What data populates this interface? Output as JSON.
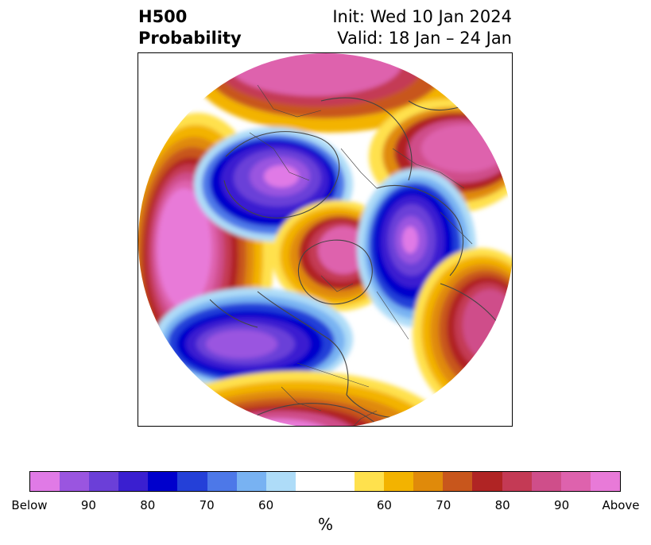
{
  "title": {
    "left_line1": "H500",
    "left_line2": "Probability",
    "right_line1": "Init: Wed 10 Jan 2024",
    "right_line2": "Valid: 18 Jan – 24 Jan"
  },
  "colorbar": {
    "colors": [
      "#e07ae6",
      "#9a55e0",
      "#6b3fd8",
      "#3a1fd0",
      "#0000cc",
      "#2440d8",
      "#4d78e8",
      "#78b2f2",
      "#aedcf8",
      "#ffffff",
      "#ffffff",
      "#ffe14d",
      "#f3b300",
      "#e08a0a",
      "#c8561c",
      "#b02424",
      "#c43a55",
      "#cf4e8a",
      "#de62ad",
      "#e87ad8"
    ],
    "tick_labels": [
      "Below",
      "90",
      "80",
      "70",
      "60",
      "60",
      "70",
      "80",
      "90",
      "Above"
    ],
    "unit": "%"
  },
  "map": {
    "projection": "north-polar-stereographic",
    "anomaly_regions": [
      {
        "region": "north-pacific-aleutians",
        "sign": "above",
        "max_category": "Above"
      },
      {
        "region": "eastern-siberia",
        "sign": "below",
        "max_category": "Below"
      },
      {
        "region": "arctic-ocean",
        "sign": "above",
        "max_category": "90"
      },
      {
        "region": "scandinavia-ural",
        "sign": "below",
        "max_category": "Below"
      },
      {
        "region": "north-atlantic-greenland",
        "sign": "above",
        "max_category": "90"
      },
      {
        "region": "western-north-america",
        "sign": "below",
        "max_category": "Below"
      },
      {
        "region": "mongolia-china",
        "sign": "above",
        "max_category": "Above"
      },
      {
        "region": "eastern-mediterranean",
        "sign": "above",
        "max_category": "90"
      }
    ]
  }
}
